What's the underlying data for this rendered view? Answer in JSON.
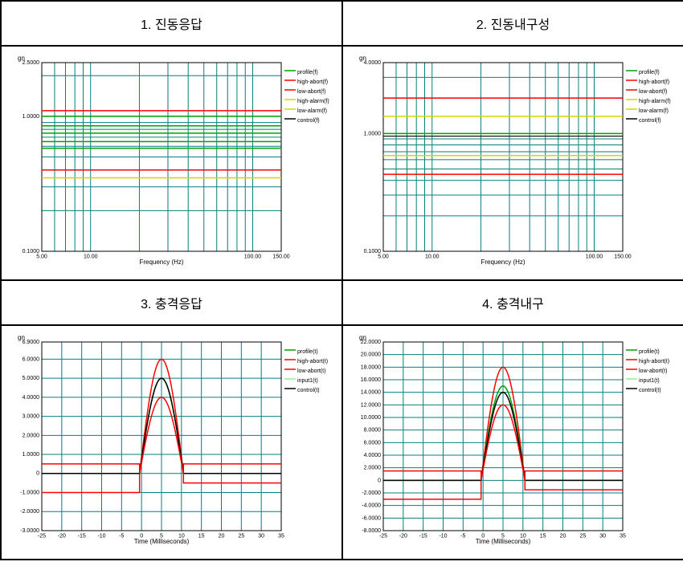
{
  "panels": [
    {
      "title": "1. 진동응답",
      "type": "log-log",
      "ylabel": "gn",
      "xlabel": "Frequency (Hz)",
      "xlim": [
        5,
        150
      ],
      "ylim": [
        0.1,
        2.5
      ],
      "xticks": [
        5,
        10,
        100,
        150
      ],
      "xtick_labels": [
        "5.00",
        "10.00",
        "100.00",
        "150.00"
      ],
      "yticks": [
        0.1,
        1.0,
        2.5
      ],
      "ytick_labels": [
        "0.1000",
        "1.0000",
        "2.5000"
      ],
      "grid_color": "#008080",
      "background": "#ffffff",
      "legend": [
        {
          "label": "profile(f)",
          "color": "#00a000"
        },
        {
          "label": "high-abort(f)",
          "color": "#ff0000"
        },
        {
          "label": "low-abort(f)",
          "color": "#ff0000"
        },
        {
          "label": "high-alarm(f)",
          "color": "#d4d400"
        },
        {
          "label": "low-alarm(f)",
          "color": "#d4d400"
        },
        {
          "label": "control(f)",
          "color": "#000000"
        }
      ],
      "hlines": [
        {
          "y": 1.0,
          "color": "#00a000",
          "width": 1.5
        },
        {
          "y": 0.85,
          "color": "#00a000",
          "width": 1.5
        },
        {
          "y": 0.75,
          "color": "#00a000",
          "width": 1.5
        },
        {
          "y": 0.65,
          "color": "#00a000",
          "width": 1.5
        },
        {
          "y": 0.58,
          "color": "#00a000",
          "width": 1.5
        },
        {
          "y": 0.4,
          "color": "#ff0000",
          "width": 1.5
        },
        {
          "y": 0.35,
          "color": "#d4d400",
          "width": 1.5
        },
        {
          "y": 1.1,
          "color": "#ff0000",
          "width": 1.5
        }
      ]
    },
    {
      "title": "2. 진동내구성",
      "type": "log-log",
      "ylabel": "gn",
      "xlabel": "Frequency (Hz)",
      "xlim": [
        5,
        150
      ],
      "ylim": [
        0.1,
        4.0
      ],
      "xticks": [
        5,
        10,
        100,
        150
      ],
      "xtick_labels": [
        "5.00",
        "10.00",
        "100.00",
        "150.00"
      ],
      "yticks": [
        0.1,
        1.0,
        4.0
      ],
      "ytick_labels": [
        "0.1000",
        "1.0000",
        "4.0000"
      ],
      "grid_color": "#008080",
      "background": "#ffffff",
      "legend": [
        {
          "label": "profile(f)",
          "color": "#00a000"
        },
        {
          "label": "high-abort(f)",
          "color": "#ff0000"
        },
        {
          "label": "low-abort(f)",
          "color": "#ff0000"
        },
        {
          "label": "high-alarm(f)",
          "color": "#d4d400"
        },
        {
          "label": "low-alarm(f)",
          "color": "#d4d400"
        },
        {
          "label": "control(f)",
          "color": "#000000"
        }
      ],
      "hlines": [
        {
          "y": 2.0,
          "color": "#ff0000",
          "width": 1.5
        },
        {
          "y": 1.4,
          "color": "#d4d400",
          "width": 1.5
        },
        {
          "y": 1.0,
          "color": "#00a000",
          "width": 1.5
        },
        {
          "y": 0.95,
          "color": "#000000",
          "width": 1.2
        },
        {
          "y": 0.65,
          "color": "#d4d400",
          "width": 1.5
        },
        {
          "y": 0.45,
          "color": "#ff0000",
          "width": 1.5
        }
      ]
    },
    {
      "title": "3. 충격응답",
      "type": "linear",
      "ylabel": "gn",
      "xlabel": "Time (Milliseconds)",
      "xlim": [
        -25,
        35
      ],
      "ylim": [
        -3,
        6.9
      ],
      "xticks": [
        -25,
        -20,
        -15,
        -10,
        -5,
        0,
        5,
        10,
        15,
        20,
        25,
        30,
        35
      ],
      "xtick_labels": [
        "-25",
        "-20",
        "-15",
        "-10",
        "-5",
        "0",
        "5",
        "10",
        "15",
        "20",
        "25",
        "30",
        "35"
      ],
      "yticks": [
        -3,
        -2,
        -1,
        0,
        1,
        2,
        3,
        4,
        5,
        6,
        6.9
      ],
      "ytick_labels": [
        "-3.0000",
        "-2.0000",
        "-1.0000",
        "0",
        "1.0000",
        "2.0000",
        "3.0000",
        "4.0000",
        "5.0000",
        "6.0000",
        "6.9000"
      ],
      "grid_color": "#008080",
      "background": "#ffffff",
      "legend": [
        {
          "label": "profile(t)",
          "color": "#00a000"
        },
        {
          "label": "high-abort(t)",
          "color": "#ff0000"
        },
        {
          "label": "low-abort(t)",
          "color": "#ff0000"
        },
        {
          "label": "input1(t)",
          "color": "#90ee90"
        },
        {
          "label": "control(t)",
          "color": "#000000"
        }
      ],
      "shock_curves": [
        {
          "peak": 6.0,
          "center": 5,
          "width": 11,
          "base_neg": -1.0,
          "base_pos": 0.5,
          "color": "#ff0000"
        },
        {
          "peak": 5.0,
          "center": 5,
          "width": 11,
          "base_neg": 0,
          "base_pos": 0,
          "color": "#00a000"
        },
        {
          "peak": 5.0,
          "center": 5,
          "width": 11,
          "base_neg": 0,
          "base_pos": 0,
          "color": "#000000"
        },
        {
          "peak": 4.0,
          "center": 5,
          "width": 11,
          "base_neg": 0.5,
          "base_pos": -0.5,
          "color": "#ff0000"
        }
      ],
      "extra_hlines": [
        {
          "y": -1.0,
          "x_ranges": [
            [
              -25,
              -0.5
            ],
            [
              10.5,
              35
            ]
          ],
          "color": "#ff0000"
        },
        {
          "y": 0.5,
          "x_ranges": [
            [
              -25,
              -0.5
            ],
            [
              10.5,
              35
            ]
          ],
          "color": "#ff0000"
        },
        {
          "y": -1.0,
          "x_full": true,
          "color": "#00a000"
        }
      ]
    },
    {
      "title": "4. 충격내구",
      "type": "linear",
      "ylabel": "gn",
      "xlabel": "Time (Milliseconds)",
      "xlim": [
        -25,
        35
      ],
      "ylim": [
        -8,
        22
      ],
      "xticks": [
        -25,
        -20,
        -15,
        -10,
        -5,
        0,
        5,
        10,
        15,
        20,
        25,
        30,
        35
      ],
      "xtick_labels": [
        "-25",
        "-20",
        "-15",
        "-10",
        "-5",
        "0",
        "5",
        "10",
        "15",
        "20",
        "25",
        "30",
        "35"
      ],
      "yticks": [
        -8,
        -6,
        -4,
        -2,
        0,
        2,
        4,
        6,
        8,
        10,
        12,
        14,
        16,
        18,
        20,
        22
      ],
      "ytick_labels": [
        "-8.0000",
        "-6.0000",
        "-4.0000",
        "-2.0000",
        "0",
        "2.0000",
        "4.0000",
        "6.0000",
        "8.0000",
        "10.0000",
        "12.0000",
        "14.0000",
        "16.0000",
        "18.0000",
        "20.0000",
        "22.0000"
      ],
      "grid_color": "#008080",
      "background": "#ffffff",
      "legend": [
        {
          "label": "profile(t)",
          "color": "#00a000"
        },
        {
          "label": "high-abort(t)",
          "color": "#ff0000"
        },
        {
          "label": "low-abort(t)",
          "color": "#ff0000"
        },
        {
          "label": "input1(t)",
          "color": "#90ee90"
        },
        {
          "label": "control(t)",
          "color": "#000000"
        }
      ],
      "shock_curves": [
        {
          "peak": 18.0,
          "center": 5,
          "width": 11,
          "base_neg": -3.0,
          "base_pos": 1.5,
          "color": "#ff0000"
        },
        {
          "peak": 15.0,
          "center": 5,
          "width": 11,
          "base_neg": 0,
          "base_pos": 0,
          "color": "#00a000"
        },
        {
          "peak": 14.0,
          "center": 5,
          "width": 11,
          "base_neg": 0,
          "base_pos": 0,
          "color": "#000000"
        },
        {
          "peak": 12.0,
          "center": 5,
          "width": 11,
          "base_neg": 1.5,
          "base_pos": -1.5,
          "color": "#ff0000"
        }
      ],
      "extra_hlines": [
        {
          "y": -3.0,
          "x_ranges": [
            [
              -25,
              -0.5
            ],
            [
              10.5,
              35
            ]
          ],
          "color": "#ff0000"
        },
        {
          "y": 1.5,
          "x_ranges": [
            [
              -25,
              -0.5
            ],
            [
              10.5,
              35
            ]
          ],
          "color": "#ff0000"
        },
        {
          "y": -3.0,
          "x_full": true,
          "color": "#00a000"
        }
      ]
    }
  ],
  "label_fontsize": 8,
  "tick_fontsize": 7,
  "legend_fontsize": 7
}
